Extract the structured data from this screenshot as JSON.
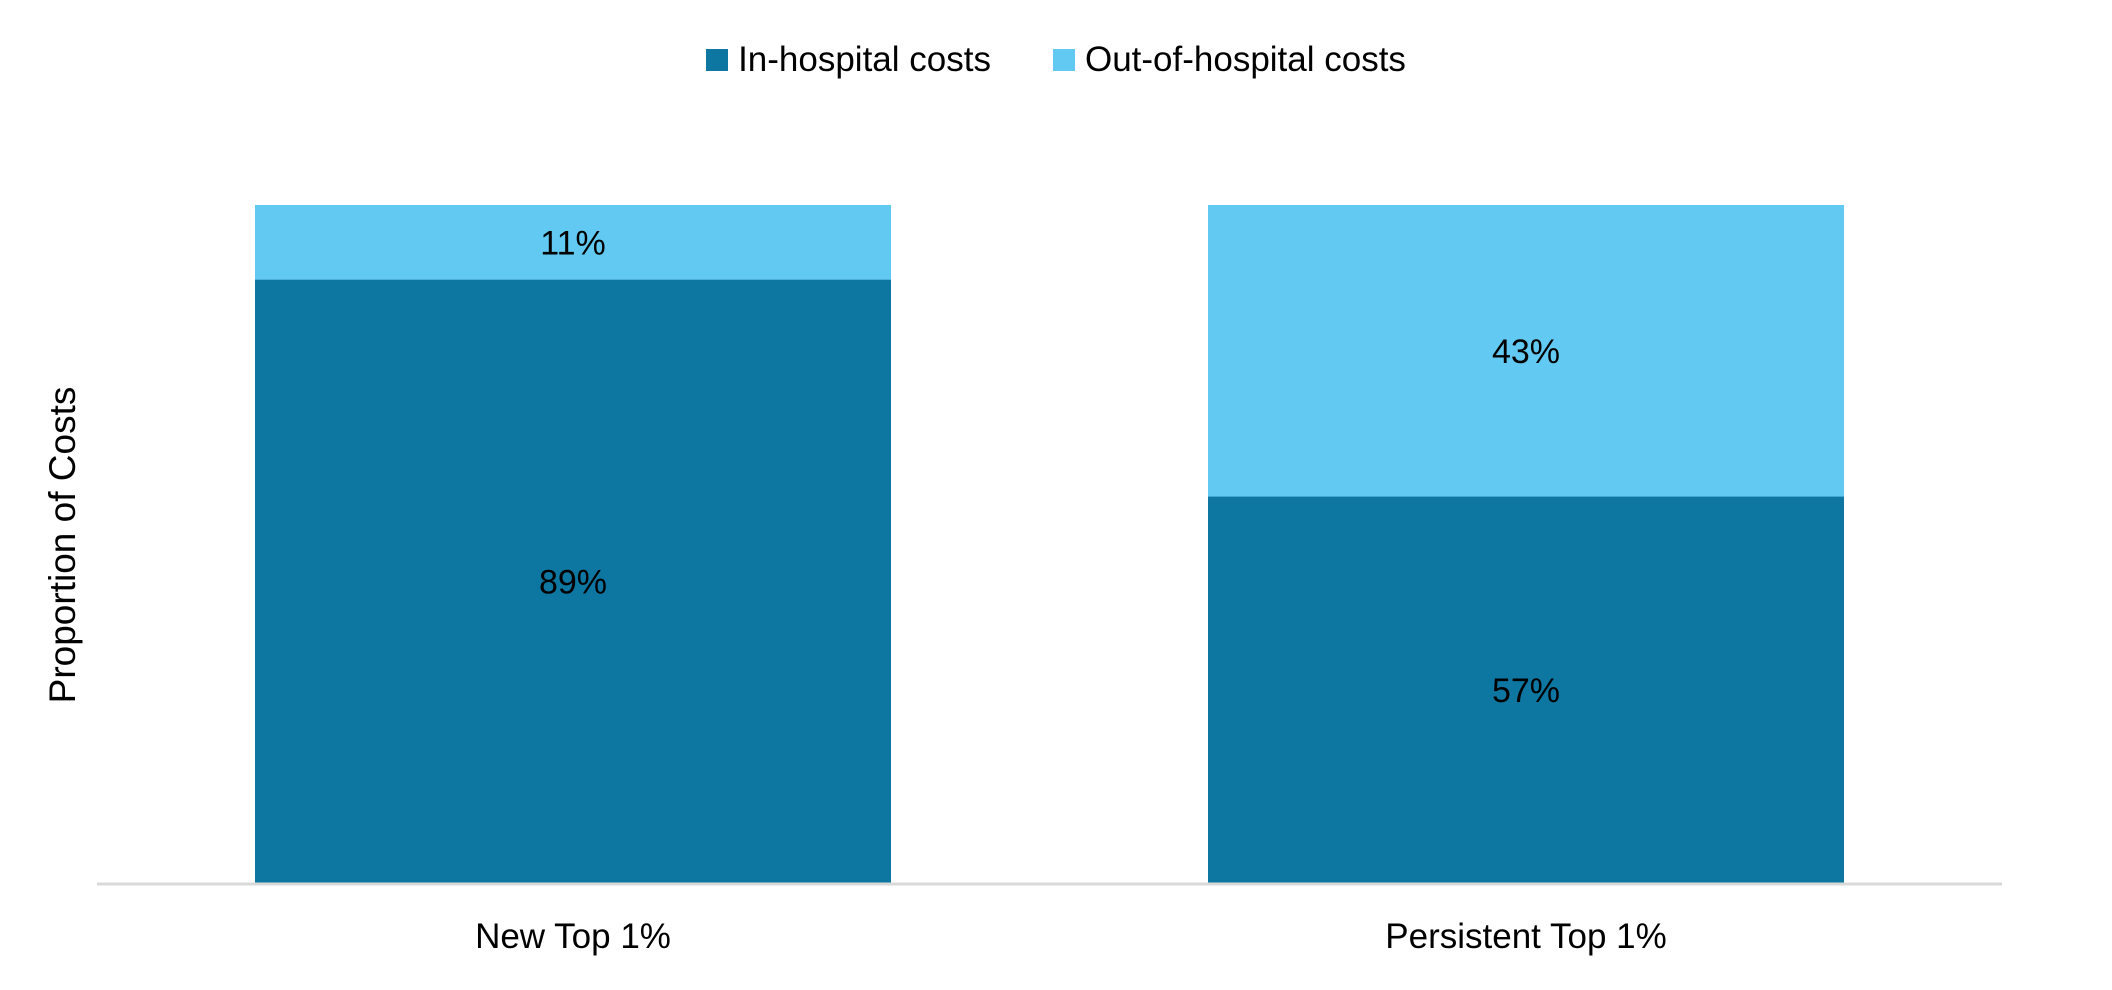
{
  "chart_data": {
    "type": "bar",
    "stacked": "percent",
    "title": "",
    "xlabel": "",
    "ylabel": "Proportion of Costs",
    "ylim": [
      0,
      100
    ],
    "grid": false,
    "legend_position": "top-center",
    "categories": [
      "New Top 1%",
      "Persistent Top 1%"
    ],
    "series": [
      {
        "name": "In-hospital costs",
        "color": "#0D76A1",
        "values": [
          89,
          57
        ],
        "labels": [
          "89%",
          "57%"
        ]
      },
      {
        "name": "Out-of-hospital costs",
        "color": "#62CAF2",
        "values": [
          11,
          43
        ],
        "labels": [
          "11%",
          "43%"
        ]
      }
    ],
    "axis_color": "#D9D9D9"
  }
}
